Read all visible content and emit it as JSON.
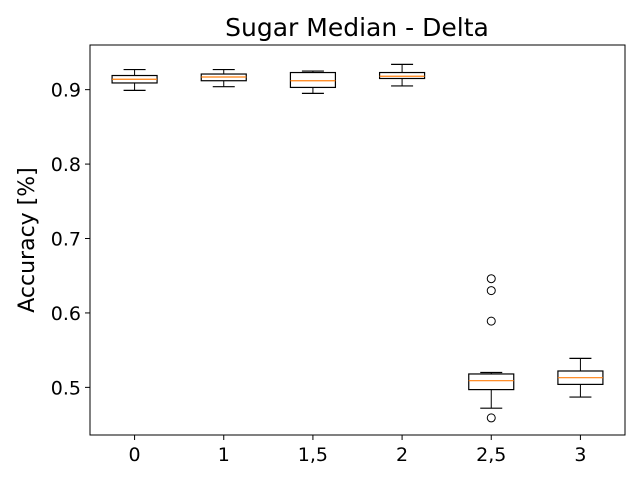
{
  "chart_data": {
    "type": "box",
    "title": "Sugar Median - Delta",
    "xlabel": "",
    "ylabel": "Accuracy [%]",
    "ylim": [
      0.436,
      0.96
    ],
    "yticks": [
      0.5,
      0.6,
      0.7,
      0.8,
      0.9
    ],
    "ytick_labels": [
      "0.5",
      "0.6",
      "0.7",
      "0.8",
      "0.9"
    ],
    "grid": false,
    "categories": [
      "0",
      "1",
      "1,5",
      "2",
      "2,5",
      "3"
    ],
    "boxes": [
      {
        "label": "0",
        "whisker_low": 0.899,
        "q1": 0.909,
        "median": 0.914,
        "q3": 0.919,
        "whisker_high": 0.927,
        "outliers": []
      },
      {
        "label": "1",
        "whisker_low": 0.904,
        "q1": 0.912,
        "median": 0.917,
        "q3": 0.921,
        "whisker_high": 0.927,
        "outliers": []
      },
      {
        "label": "1,5",
        "whisker_low": 0.895,
        "q1": 0.903,
        "median": 0.912,
        "q3": 0.923,
        "whisker_high": 0.925,
        "outliers": []
      },
      {
        "label": "2",
        "whisker_low": 0.905,
        "q1": 0.915,
        "median": 0.918,
        "q3": 0.923,
        "whisker_high": 0.934,
        "outliers": []
      },
      {
        "label": "2,5",
        "whisker_low": 0.472,
        "q1": 0.497,
        "median": 0.509,
        "q3": 0.518,
        "whisker_high": 0.52,
        "outliers": [
          0.646,
          0.63,
          0.589,
          0.459
        ]
      },
      {
        "label": "3",
        "whisker_low": 0.487,
        "q1": 0.504,
        "median": 0.513,
        "q3": 0.522,
        "whisker_high": 0.539,
        "outliers": []
      }
    ],
    "colors": {
      "box": "#000000",
      "median": "#ff7f0e",
      "background": "#ffffff"
    }
  }
}
